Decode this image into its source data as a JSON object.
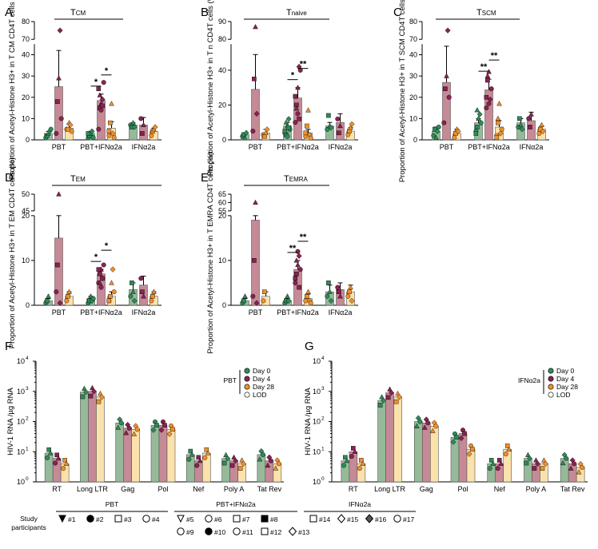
{
  "legend_study_label": "Study participants",
  "participant_groups": [
    "PBT",
    "PBT+IFNα2a",
    "IFNα2a"
  ],
  "participants": [
    "#1",
    "#2",
    "#3",
    "#4",
    "#5",
    "#6",
    "#7",
    "#8",
    "#9",
    "#10",
    "#11",
    "#12",
    "#13",
    "#14",
    "#15",
    "#16",
    "#17"
  ],
  "colors": {
    "green": "#96b99a",
    "pink": "#c58a96",
    "yellow": "#fbe2ac",
    "dot_green": "#2e8b57",
    "dot_purple": "#8a2251",
    "dot_orange": "#ef8f2a"
  },
  "chart_data": [
    {
      "type": "bar",
      "panel": "A",
      "title": "T",
      "title_sub": "CM",
      "ylabel": "Proportion of Acetyl-Histone H3+ in T_CM CD4T cells (%)",
      "ylim_low": [
        0,
        45
      ],
      "ylim_high": [
        70,
        80
      ],
      "yticks": [
        0,
        10,
        20,
        30,
        40,
        70,
        80
      ],
      "groups": [
        "PBT",
        "PBT+IFNα2a",
        "IFNα2a"
      ],
      "series_names": [
        "Day 0",
        "Day 4",
        "Day 28"
      ],
      "means": [
        [
          3,
          25,
          5.5
        ],
        [
          3,
          18.5,
          5.5
        ],
        [
          7,
          7,
          4
        ]
      ],
      "errors": [
        [
          1,
          17,
          2
        ],
        [
          1,
          3,
          3
        ],
        [
          1,
          3.5,
          1.5
        ]
      ],
      "points": [
        [
          [
            1,
            2,
            3,
            4,
            5
          ],
          [
            3,
            18,
            29,
            75,
            10
          ],
          [
            5,
            5,
            8,
            7,
            4
          ]
        ],
        [
          [
            1,
            2,
            3,
            4,
            1,
            3
          ],
          [
            5,
            15,
            17,
            19,
            27,
            24,
            21,
            14,
            16
          ],
          [
            2,
            8,
            17,
            3,
            1,
            4
          ]
        ],
        [
          [
            7,
            6,
            8,
            6
          ],
          [
            10,
            3,
            7
          ],
          [
            2,
            4,
            5,
            6
          ]
        ]
      ],
      "significance": [
        {
          "label": "*"
        },
        {
          "label": "*"
        }
      ]
    },
    {
      "type": "bar",
      "panel": "B",
      "title": "T",
      "title_sub": "naive",
      "ylabel": "Proportion of Acetyl-Histone H3+ in T_n CD4T cells (%)",
      "ylim_low": [
        0,
        55
      ],
      "ylim_high": [
        80,
        90
      ],
      "yticks": [
        0,
        20,
        40,
        80,
        90
      ],
      "groups": [
        "PBT",
        "PBT+IFNα2a",
        "IFNα2a"
      ],
      "series_names": [
        "Day 0",
        "Day 4",
        "Day 28"
      ],
      "means": [
        [
          3,
          29,
          4
        ],
        [
          8,
          24,
          4
        ],
        [
          8,
          10,
          5
        ]
      ],
      "errors": [
        [
          1,
          20,
          2
        ],
        [
          2,
          6,
          2
        ],
        [
          2,
          5,
          2
        ]
      ],
      "points": [
        [
          [
            2,
            3,
            1,
            4
          ],
          [
            5,
            35,
            87,
            15
          ],
          [
            3,
            2,
            4,
            6
          ]
        ],
        [
          [
            4,
            3,
            8,
            12,
            6,
            5,
            10,
            2,
            7
          ],
          [
            10,
            20,
            30,
            42,
            40,
            25,
            18,
            15,
            12
          ],
          [
            2,
            8,
            17,
            3,
            1,
            4
          ]
        ],
        [
          [
            6,
            14,
            8,
            7
          ],
          [
            12,
            4,
            8
          ],
          [
            3,
            5,
            7,
            9
          ]
        ]
      ],
      "significance": [
        {
          "label": "*"
        },
        {
          "label": "**"
        }
      ]
    },
    {
      "type": "bar",
      "panel": "C",
      "title": "T",
      "title_sub": "SCM",
      "ylabel": "Proportion of Acetyl-Histone H3+ in T_SCM CD4T cells (%)",
      "ylim_low": [
        0,
        45
      ],
      "ylim_high": [
        70,
        80
      ],
      "yticks": [
        0,
        10,
        20,
        30,
        40,
        70,
        80
      ],
      "groups": [
        "PBT",
        "PBT+IFNα2a",
        "IFNα2a"
      ],
      "series_names": [
        "Day 0",
        "Day 4",
        "Day 28"
      ],
      "means": [
        [
          4,
          27,
          3
        ],
        [
          8,
          23.5,
          6
        ],
        [
          8,
          9,
          5
        ]
      ],
      "errors": [
        [
          2,
          17,
          2
        ],
        [
          2,
          5,
          3
        ],
        [
          2,
          4,
          1.5
        ]
      ],
      "points": [
        [
          [
            2,
            5,
            1,
            4,
            6
          ],
          [
            8,
            24,
            30,
            75,
            20
          ],
          [
            1,
            3,
            5,
            4
          ]
        ],
        [
          [
            4,
            6,
            10,
            12,
            8,
            3,
            14
          ],
          [
            15,
            28,
            32,
            19,
            24,
            20,
            30,
            17
          ],
          [
            2,
            8,
            17,
            3,
            5,
            1,
            10
          ]
        ],
        [
          [
            6,
            10,
            7,
            5
          ],
          [
            10,
            6,
            12
          ],
          [
            3,
            5,
            7,
            4
          ]
        ]
      ],
      "significance": [
        {
          "label": "**"
        },
        {
          "label": "**"
        }
      ]
    },
    {
      "type": "bar",
      "panel": "D",
      "title": "T",
      "title_sub": "EM",
      "ylabel": "Proportion of Acetyl-Histone H3+ in T_EM CD4T cells (%)",
      "ylim_low": [
        0,
        20
      ],
      "ylim_high": [
        45,
        50
      ],
      "yticks": [
        0,
        10,
        20,
        45,
        50
      ],
      "groups": [
        "PBT",
        "PBT+IFNα2a",
        "IFNα2a"
      ],
      "series_names": [
        "Day 0",
        "Day 4",
        "Day 28"
      ],
      "means": [
        [
          1,
          15,
          2
        ],
        [
          1.5,
          7,
          2
        ],
        [
          3.5,
          4.5,
          2
        ]
      ],
      "errors": [
        [
          0.5,
          12,
          1
        ],
        [
          0.5,
          1,
          1
        ],
        [
          1.5,
          2,
          1
        ]
      ],
      "points": [
        [
          [
            0.5,
            1,
            2
          ],
          [
            3,
            9,
            50,
            0.5
          ],
          [
            1,
            2,
            3
          ]
        ],
        [
          [
            0.5,
            1,
            2,
            1,
            1.5
          ],
          [
            5,
            7,
            8,
            6,
            9,
            8,
            5,
            4,
            6
          ],
          [
            1,
            2,
            5,
            8,
            3,
            1
          ]
        ],
        [
          [
            2,
            5,
            3,
            1
          ],
          [
            6,
            3,
            2
          ],
          [
            1,
            2,
            3
          ]
        ]
      ],
      "significance": [
        {
          "label": "*"
        },
        {
          "label": "*"
        }
      ]
    },
    {
      "type": "bar",
      "panel": "E",
      "title": "T",
      "title_sub": "EMRA",
      "ylabel": "Proportion of Acetyl-Histone H3+ in T_EMRA CD4T cells (%)",
      "ylim_low": [
        0,
        20
      ],
      "ylim_high": [
        55,
        65
      ],
      "yticks": [
        0,
        10,
        20,
        55,
        60,
        65
      ],
      "groups": [
        "PBT",
        "PBT+IFNα2a",
        "IFNα2a"
      ],
      "series_names": [
        "Day 0",
        "Day 4",
        "Day 28"
      ],
      "means": [
        [
          1,
          19,
          2
        ],
        [
          1,
          8,
          1.5
        ],
        [
          3,
          3.5,
          3
        ]
      ],
      "errors": [
        [
          0.5,
          14,
          1
        ],
        [
          0.5,
          2,
          1
        ],
        [
          1.5,
          1.5,
          1.5
        ]
      ],
      "points": [
        [
          [
            0.5,
            1,
            2
          ],
          [
            2,
            10,
            60,
            0.5
          ],
          [
            1,
            3
          ]
        ],
        [
          [
            0.5,
            1,
            2,
            1
          ],
          [
            5,
            7,
            9,
            11,
            8,
            6,
            10,
            12,
            4
          ],
          [
            1,
            2,
            3,
            1,
            0.5
          ]
        ],
        [
          [
            2,
            5,
            3,
            1
          ],
          [
            4,
            3,
            2
          ],
          [
            2,
            3,
            4,
            1
          ]
        ]
      ],
      "significance": [
        {
          "label": "**"
        },
        {
          "label": "**"
        }
      ]
    },
    {
      "type": "bar",
      "panel": "F",
      "scale": "log",
      "ylabel": "HIV-1 RNA /µg RNA",
      "ylim": [
        1,
        10000
      ],
      "yticks_label": [
        "10^0",
        "10^1",
        "10^2",
        "10^3",
        "10^4"
      ],
      "categories": [
        "RT",
        "Long LTR",
        "Gag",
        "Pol",
        "Nef",
        "Poly A",
        "Tat Rev"
      ],
      "series": [
        {
          "name": "Day 0",
          "values": [
            9,
            950,
            90,
            75,
            8,
            6,
            8
          ]
        },
        {
          "name": "Day 4",
          "values": [
            6,
            1000,
            60,
            75,
            5,
            5,
            5
          ]
        },
        {
          "name": "Day 28",
          "values": [
            4,
            650,
            55,
            55,
            9,
            4,
            4
          ]
        }
      ],
      "legend": {
        "group": "PBT",
        "entries": [
          "Day 0",
          "Day 4",
          "Day 28",
          "LOD"
        ]
      }
    },
    {
      "type": "bar",
      "panel": "G",
      "scale": "log",
      "ylabel": "HIV-1 RNA /µg RNA",
      "ylim": [
        1,
        10000
      ],
      "yticks_label": [
        "10^0",
        "10^1",
        "10^2",
        "10^3",
        "10^4"
      ],
      "categories": [
        "RT",
        "Long LTR",
        "Gag",
        "Pol",
        "Nef",
        "Poly A",
        "Tat Rev"
      ],
      "series": [
        {
          "name": "Day 0",
          "values": [
            5,
            500,
            100,
            30,
            4,
            6,
            6
          ]
        },
        {
          "name": "Day 4",
          "values": [
            10,
            900,
            90,
            40,
            4,
            4,
            4
          ]
        },
        {
          "name": "Day 28",
          "values": [
            4,
            650,
            70,
            12,
            12,
            4,
            3
          ]
        }
      ],
      "legend": {
        "group": "IFNα2a",
        "entries": [
          "Day 0",
          "Day 4",
          "Day 28",
          "LOD"
        ]
      }
    }
  ]
}
